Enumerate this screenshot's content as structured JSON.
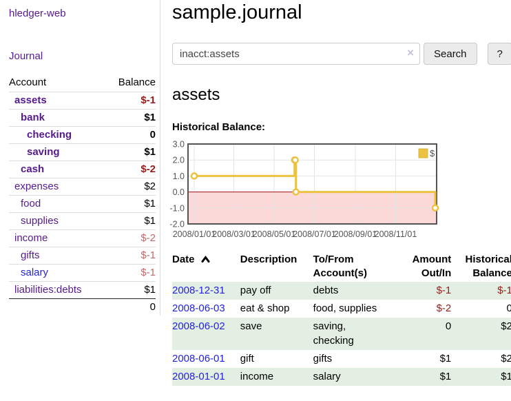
{
  "sidebar": {
    "brand": "hledger-web",
    "nav_journal": "Journal",
    "accounts_table": {
      "account_header": "Account",
      "balance_header": "Balance",
      "rows": [
        {
          "name": "assets",
          "indent": 1,
          "bold": true,
          "balance": "$-1",
          "balance_style": "neg-strong"
        },
        {
          "name": "bank",
          "indent": 2,
          "bold": true,
          "balance": "$1",
          "balance_style": "normal"
        },
        {
          "name": "checking",
          "indent": 3,
          "bold": true,
          "balance": "0",
          "balance_style": "normal"
        },
        {
          "name": "saving",
          "indent": 3,
          "bold": true,
          "balance": "$1",
          "balance_style": "normal"
        },
        {
          "name": "cash",
          "indent": 2,
          "bold": true,
          "balance": "$-2",
          "balance_style": "neg-strong"
        },
        {
          "name": "expenses",
          "indent": 1,
          "bold": false,
          "balance": "$2",
          "balance_style": "normal"
        },
        {
          "name": "food",
          "indent": 2,
          "bold": false,
          "balance": "$1",
          "balance_style": "normal"
        },
        {
          "name": "supplies",
          "indent": 2,
          "bold": false,
          "balance": "$1",
          "balance_style": "normal"
        },
        {
          "name": "income",
          "indent": 1,
          "bold": false,
          "balance": "$-2",
          "balance_style": "neg-soft"
        },
        {
          "name": "gifts",
          "indent": 2,
          "bold": false,
          "balance": "$-1",
          "balance_style": "neg-soft"
        },
        {
          "name": "salary",
          "indent": 2,
          "bold": false,
          "link_style": "unvisited",
          "balance": "$-1",
          "balance_style": "neg-soft"
        },
        {
          "name": "liabilities:debts",
          "indent": 1,
          "bold": false,
          "balance": "$1",
          "balance_style": "normal"
        }
      ],
      "total": "0"
    }
  },
  "header": {
    "title": "sample.journal"
  },
  "search": {
    "query": "inacct:assets",
    "clear_icon": "×",
    "button_label": "Search",
    "help_label": "?"
  },
  "main": {
    "account_heading": "assets",
    "chart_label": "Historical Balance:"
  },
  "register": {
    "columns": [
      {
        "key": "date",
        "label": "Date",
        "align": "left",
        "sorted": "asc"
      },
      {
        "key": "description",
        "label": "Description",
        "align": "left"
      },
      {
        "key": "accounts",
        "label": "To/From Account(s)",
        "align": "left"
      },
      {
        "key": "amount",
        "label": "Amount Out/In",
        "align": "right"
      },
      {
        "key": "balance",
        "label": "Historical Balance",
        "align": "right"
      }
    ],
    "rows": [
      {
        "date": "2008-12-31",
        "description": "pay off",
        "accounts": "debts",
        "amount": "$-1",
        "balance": "$-1"
      },
      {
        "date": "2008-06-03",
        "description": "eat & shop",
        "accounts": "food, supplies",
        "amount": "$-2",
        "balance": "0"
      },
      {
        "date": "2008-06-02",
        "description": "save",
        "accounts": "saving, checking",
        "amount": "0",
        "balance": "$2"
      },
      {
        "date": "2008-06-01",
        "description": "gift",
        "accounts": "gifts",
        "amount": "$1",
        "balance": "$2"
      },
      {
        "date": "2008-01-01",
        "description": "income",
        "accounts": "salary",
        "amount": "$1",
        "balance": "$1"
      }
    ]
  },
  "chart_data": {
    "type": "line",
    "step": true,
    "title": "Historical Balance:",
    "series": [
      {
        "name": "$",
        "color": "#edc240",
        "points": [
          [
            "2008-01-01",
            1
          ],
          [
            "2008-06-01",
            2
          ],
          [
            "2008-06-02",
            2
          ],
          [
            "2008-06-03",
            0
          ],
          [
            "2008-12-31",
            -1
          ]
        ]
      }
    ],
    "xlim": [
      "2008-01-01",
      "2008-12-31"
    ],
    "ylim": [
      -2,
      3
    ],
    "x_ticks": [
      "2008/01/01",
      "2008/03/01",
      "2008/05/01",
      "2008/07/01",
      "2008/09/01",
      "2008/11/01"
    ],
    "y_ticks": [
      3.0,
      2.0,
      1.0,
      0.0,
      -1.0,
      -2.0
    ],
    "grid": true,
    "legend_position": "top-right",
    "negative_region_color": "#fbd9d9",
    "zero_line_color": "#991111"
  },
  "colors": {
    "link_purple": "#551a8b",
    "link_blue": "#2222dd",
    "neg_strong": "#961d1d",
    "neg_soft": "#bf6a6a",
    "row_green": "#e3efe3",
    "btn_bg": "#ececec",
    "btn_border": "#c8c8c8",
    "divider": "#dddddd",
    "clear_icon": "#c9c0dc",
    "chart_border": "#545454",
    "chart_grid": "#e4e4e4",
    "chart_tick_text": "#545454"
  }
}
